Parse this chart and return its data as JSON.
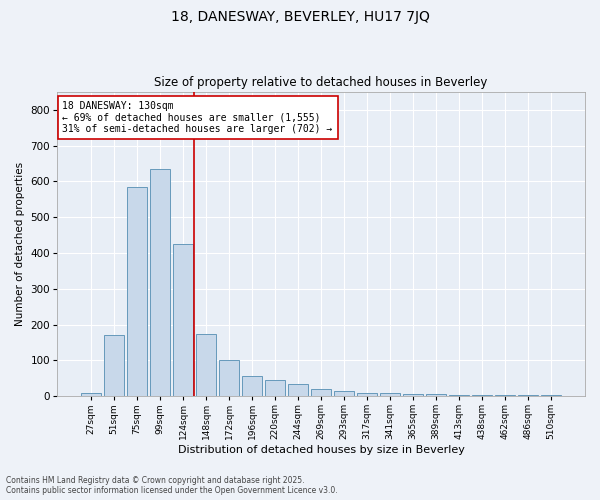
{
  "title": "18, DANESWAY, BEVERLEY, HU17 7JQ",
  "subtitle": "Size of property relative to detached houses in Beverley",
  "xlabel": "Distribution of detached houses by size in Beverley",
  "ylabel": "Number of detached properties",
  "bar_color": "#c8d8ea",
  "bar_edge_color": "#6699bb",
  "background_color": "#e8eef6",
  "grid_color": "#ffffff",
  "categories": [
    "27sqm",
    "51sqm",
    "75sqm",
    "99sqm",
    "124sqm",
    "148sqm",
    "172sqm",
    "196sqm",
    "220sqm",
    "244sqm",
    "269sqm",
    "293sqm",
    "317sqm",
    "341sqm",
    "365sqm",
    "389sqm",
    "413sqm",
    "438sqm",
    "462sqm",
    "486sqm",
    "510sqm"
  ],
  "values": [
    10,
    170,
    585,
    635,
    425,
    175,
    100,
    55,
    45,
    35,
    20,
    15,
    10,
    10,
    5,
    5,
    2,
    2,
    2,
    2,
    2
  ],
  "property_line_x": 4.5,
  "property_line_color": "#cc0000",
  "annotation_text": "18 DANESWAY: 130sqm\n← 69% of detached houses are smaller (1,555)\n31% of semi-detached houses are larger (702) →",
  "annotation_box_color": "#ffffff",
  "annotation_box_edge_color": "#cc0000",
  "ylim": [
    0,
    850
  ],
  "yticks": [
    0,
    100,
    200,
    300,
    400,
    500,
    600,
    700,
    800
  ],
  "footnote1": "Contains HM Land Registry data © Crown copyright and database right 2025.",
  "footnote2": "Contains public sector information licensed under the Open Government Licence v3.0."
}
